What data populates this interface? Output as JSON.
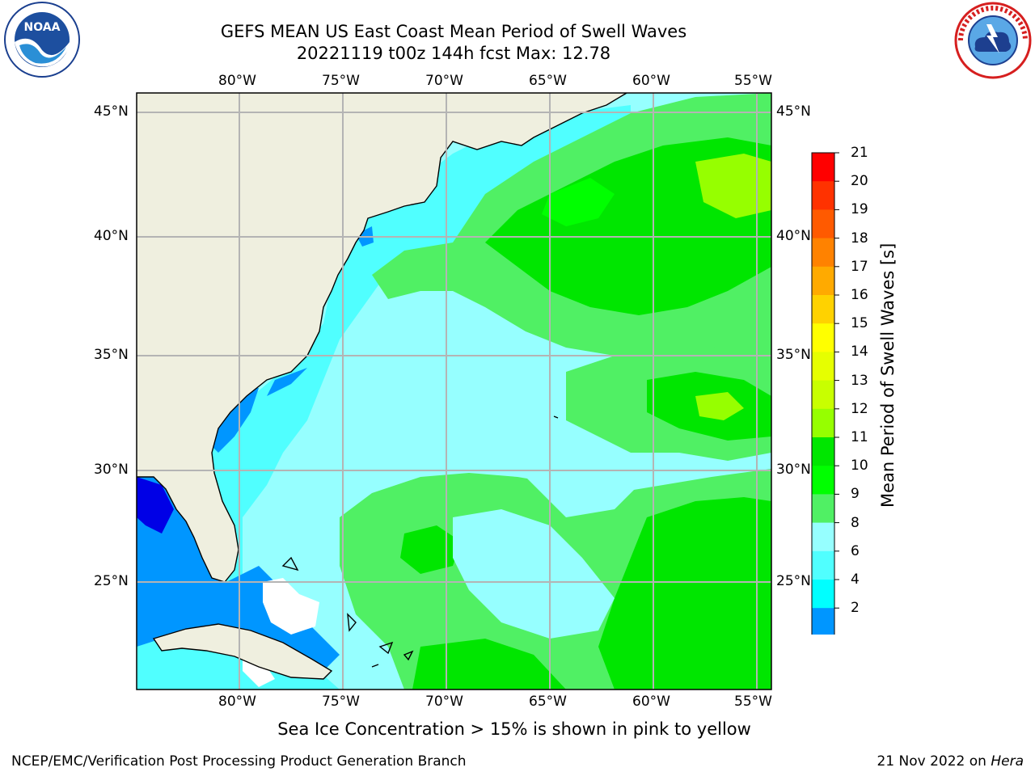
{
  "title": {
    "line1": "GEFS MEAN US East Coast Mean Period of Swell Waves",
    "line2": "20221119 t00z 144h fcst   Max: 12.78"
  },
  "logos": {
    "left": {
      "name": "noaa-logo",
      "text": "NOAA",
      "ring_text": "NATIONAL OCEANIC AND ATMOSPHERIC ADMINISTRATION · U.S. DEPARTMENT OF COMMERCE"
    },
    "right": {
      "name": "nws-logo",
      "ring_text": "NATIONAL WEATHER SERVICE"
    }
  },
  "map": {
    "lon_labels": [
      "80°W",
      "75°W",
      "70°W",
      "65°W",
      "60°W",
      "55°W"
    ],
    "lat_labels": [
      "45°N",
      "40°N",
      "35°N",
      "30°N",
      "25°N"
    ],
    "land_color": "#efefdf",
    "coast_color": "#000000",
    "grid_color": "#b4b4b4",
    "sea_ice_color": "#ffffff"
  },
  "colorbar": {
    "title": "Mean Period of Swell Waves [s]",
    "ticks": [
      "21",
      "20",
      "19",
      "18",
      "17",
      "16",
      "15",
      "14",
      "13",
      "12",
      "11",
      "10",
      "9",
      "8",
      "6",
      "4",
      "2"
    ],
    "colors_top_to_bottom": [
      "#ff0000",
      "#ff3200",
      "#ff5a00",
      "#ff8200",
      "#ffaa00",
      "#ffd200",
      "#ffff00",
      "#e6ff00",
      "#c8ff00",
      "#96ff00",
      "#00e600",
      "#00ff00",
      "#50f064",
      "#96ffff",
      "#50ffff",
      "#00ffff",
      "#0096ff"
    ],
    "under_color": "#0000e6"
  },
  "caption": "Sea Ice Concentration > 15% is shown in pink to yellow",
  "footer": {
    "left": "NCEP/EMC/Verification Post Processing Product Generation Branch",
    "right_date": "21 Nov 2022 on ",
    "right_host": "Hera"
  }
}
